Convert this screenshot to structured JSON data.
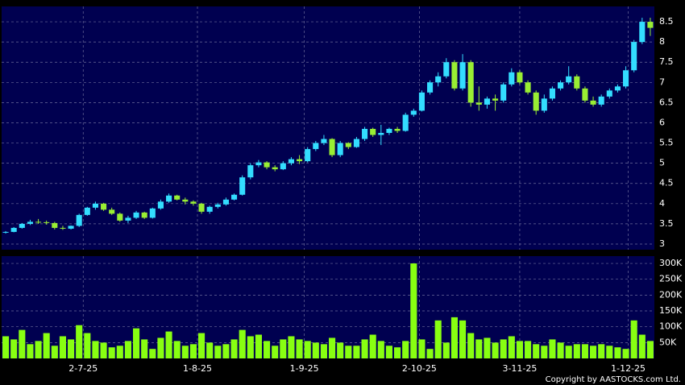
{
  "chart_data": [
    {
      "type": "candlestick",
      "candles": [
        [
          3.28,
          3.32,
          3.26,
          3.3
        ],
        [
          3.3,
          3.42,
          3.29,
          3.4
        ],
        [
          3.4,
          3.52,
          3.38,
          3.5
        ],
        [
          3.5,
          3.6,
          3.47,
          3.55
        ],
        [
          3.55,
          3.62,
          3.5,
          3.54
        ],
        [
          3.54,
          3.58,
          3.48,
          3.52
        ],
        [
          3.52,
          3.55,
          3.36,
          3.4
        ],
        [
          3.4,
          3.45,
          3.35,
          3.38
        ],
        [
          3.38,
          3.46,
          3.36,
          3.45
        ],
        [
          3.45,
          3.75,
          3.42,
          3.72
        ],
        [
          3.72,
          3.92,
          3.7,
          3.9
        ],
        [
          3.9,
          4.05,
          3.85,
          4.0
        ],
        [
          4.0,
          4.02,
          3.82,
          3.85
        ],
        [
          3.85,
          3.9,
          3.72,
          3.75
        ],
        [
          3.75,
          3.78,
          3.55,
          3.58
        ],
        [
          3.58,
          3.7,
          3.52,
          3.65
        ],
        [
          3.65,
          3.82,
          3.62,
          3.78
        ],
        [
          3.78,
          3.8,
          3.62,
          3.65
        ],
        [
          3.65,
          3.9,
          3.63,
          3.88
        ],
        [
          3.88,
          4.1,
          3.85,
          4.05
        ],
        [
          4.05,
          4.25,
          4.02,
          4.2
        ],
        [
          4.2,
          4.22,
          4.08,
          4.1
        ],
        [
          4.1,
          4.15,
          3.98,
          4.05
        ],
        [
          4.05,
          4.08,
          3.95,
          4.0
        ],
        [
          4.0,
          4.02,
          3.75,
          3.8
        ],
        [
          3.8,
          3.95,
          3.75,
          3.92
        ],
        [
          3.92,
          4.02,
          3.88,
          3.98
        ],
        [
          3.98,
          4.15,
          3.95,
          4.1
        ],
        [
          4.1,
          4.25,
          4.08,
          4.22
        ],
        [
          4.22,
          4.7,
          4.2,
          4.65
        ],
        [
          4.65,
          5.0,
          4.6,
          4.95
        ],
        [
          4.95,
          5.08,
          4.9,
          5.02
        ],
        [
          5.02,
          5.05,
          4.85,
          4.9
        ],
        [
          4.9,
          4.95,
          4.8,
          4.85
        ],
        [
          4.85,
          5.05,
          4.83,
          5.0
        ],
        [
          5.0,
          5.15,
          4.95,
          5.1
        ],
        [
          5.1,
          5.2,
          4.98,
          5.05
        ],
        [
          5.05,
          5.4,
          5.02,
          5.35
        ],
        [
          5.35,
          5.55,
          5.3,
          5.5
        ],
        [
          5.5,
          5.7,
          5.45,
          5.6
        ],
        [
          5.6,
          5.62,
          5.15,
          5.2
        ],
        [
          5.2,
          5.55,
          5.15,
          5.5
        ],
        [
          5.5,
          5.52,
          5.35,
          5.4
        ],
        [
          5.4,
          5.65,
          5.38,
          5.6
        ],
        [
          5.6,
          5.9,
          5.55,
          5.85
        ],
        [
          5.85,
          5.88,
          5.65,
          5.7
        ],
        [
          5.7,
          5.95,
          5.45,
          5.75
        ],
        [
          5.75,
          5.88,
          5.7,
          5.85
        ],
        [
          5.85,
          5.9,
          5.75,
          5.8
        ],
        [
          5.8,
          6.25,
          5.78,
          6.2
        ],
        [
          6.2,
          6.35,
          6.15,
          6.3
        ],
        [
          6.3,
          6.8,
          6.28,
          6.75
        ],
        [
          6.75,
          7.05,
          6.7,
          7.0
        ],
        [
          7.0,
          7.25,
          6.9,
          7.15
        ],
        [
          7.15,
          7.6,
          7.1,
          7.5
        ],
        [
          7.5,
          7.55,
          6.8,
          6.85
        ],
        [
          6.85,
          7.7,
          6.8,
          7.5
        ],
        [
          7.5,
          7.55,
          6.4,
          6.5
        ],
        [
          6.5,
          6.9,
          6.3,
          6.45
        ],
        [
          6.45,
          6.65,
          6.35,
          6.6
        ],
        [
          6.6,
          6.7,
          6.3,
          6.55
        ],
        [
          6.55,
          7.0,
          6.5,
          6.95
        ],
        [
          6.95,
          7.35,
          6.9,
          7.25
        ],
        [
          7.25,
          7.3,
          6.95,
          7.0
        ],
        [
          7.0,
          7.05,
          6.7,
          6.75
        ],
        [
          6.75,
          6.8,
          6.2,
          6.3
        ],
        [
          6.3,
          6.7,
          6.25,
          6.6
        ],
        [
          6.6,
          6.9,
          6.55,
          6.85
        ],
        [
          6.85,
          7.05,
          6.8,
          7.0
        ],
        [
          7.0,
          7.4,
          6.95,
          7.15
        ],
        [
          7.15,
          7.2,
          6.8,
          6.85
        ],
        [
          6.85,
          6.9,
          6.5,
          6.55
        ],
        [
          6.55,
          6.65,
          6.4,
          6.45
        ],
        [
          6.45,
          6.7,
          6.4,
          6.65
        ],
        [
          6.65,
          6.85,
          6.6,
          6.8
        ],
        [
          6.8,
          6.95,
          6.75,
          6.9
        ],
        [
          6.9,
          7.4,
          6.85,
          7.3
        ],
        [
          7.3,
          8.05,
          7.25,
          8.0
        ],
        [
          8.0,
          8.6,
          7.95,
          8.5
        ],
        [
          8.5,
          8.6,
          8.15,
          8.35
        ]
      ],
      "up_color": "#33ddff",
      "down_color": "#99ee33",
      "xlim": [
        -0.5,
        79.5
      ],
      "ylim": [
        2.86,
        8.88
      ],
      "yticks": [
        3,
        3.5,
        4,
        4.5,
        5,
        5.5,
        6,
        6.5,
        7,
        7.5,
        8,
        8.5
      ],
      "grid": true
    },
    {
      "type": "bar",
      "values": [
        70000,
        60000,
        90000,
        45000,
        55000,
        80000,
        40000,
        70000,
        60000,
        105000,
        80000,
        55000,
        50000,
        35000,
        40000,
        55000,
        95000,
        60000,
        30000,
        65000,
        85000,
        55000,
        40000,
        45000,
        80000,
        50000,
        40000,
        45000,
        60000,
        90000,
        70000,
        75000,
        55000,
        40000,
        60000,
        70000,
        60000,
        55000,
        50000,
        45000,
        65000,
        50000,
        40000,
        40000,
        60000,
        75000,
        55000,
        40000,
        35000,
        55000,
        300000,
        60000,
        30000,
        120000,
        50000,
        130000,
        120000,
        80000,
        60000,
        65000,
        50000,
        60000,
        70000,
        55000,
        55000,
        45000,
        40000,
        60000,
        50000,
        40000,
        45000,
        45000,
        40000,
        45000,
        40000,
        35000,
        30000,
        120000,
        75000,
        55000
      ],
      "color": "#88ff11",
      "xlim": [
        -0.5,
        79.5
      ],
      "xticks": [
        {
          "value": 9.5,
          "label": "2-7-25"
        },
        {
          "value": 23.5,
          "label": "1-8-25"
        },
        {
          "value": 36.6,
          "label": "1-9-25"
        },
        {
          "value": 50.7,
          "label": "2-10-25"
        },
        {
          "value": 63,
          "label": "3-11-25"
        },
        {
          "value": 76.3,
          "label": "1-12-25"
        }
      ],
      "ylim": [
        0,
        323000
      ],
      "yticks": [
        {
          "value": 50000,
          "label": "50K"
        },
        {
          "value": 100000,
          "label": "100K"
        },
        {
          "value": 150000,
          "label": "150K"
        },
        {
          "value": 200000,
          "label": "200K"
        },
        {
          "value": 250000,
          "label": "250K"
        },
        {
          "value": 300000,
          "label": "300K"
        }
      ],
      "grid": true
    }
  ],
  "copyright": "Copyright by AASTOCKS.com Ltd."
}
